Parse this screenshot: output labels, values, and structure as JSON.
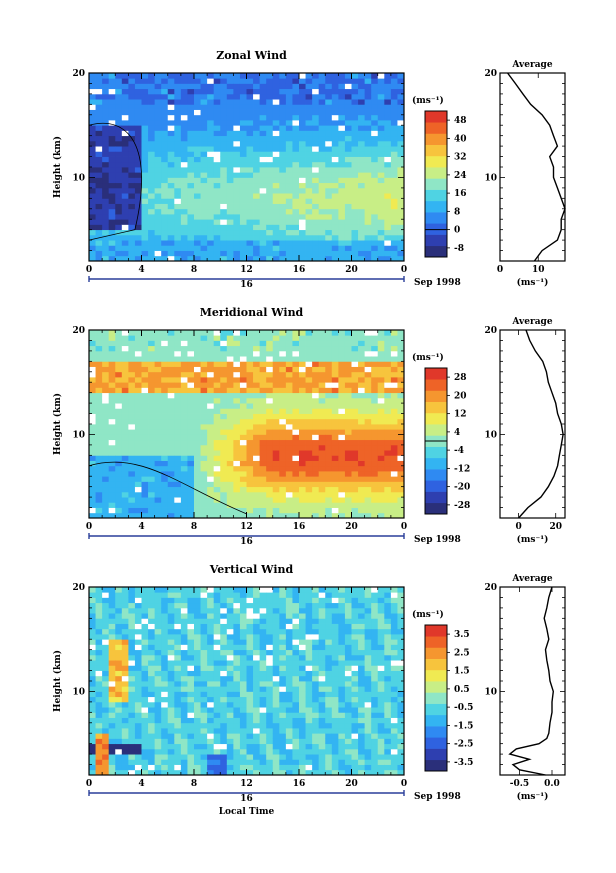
{
  "colors": {
    "colormap": [
      "#2a2f7a",
      "#2e3fb0",
      "#2f62e0",
      "#2f8af2",
      "#33b4f2",
      "#4fd3e3",
      "#8fe6c6",
      "#c8ee86",
      "#f0ea52",
      "#f7c43d",
      "#f5962f",
      "#ee6327",
      "#e0382a"
    ],
    "axis": "#000000",
    "time_bar": "#2a3f9a"
  },
  "common": {
    "ylabel": "Height (km)",
    "xlabel": "Local Time",
    "unit_label": "(ms⁻¹)",
    "avg_title": "Average",
    "date_label": "Sep 1998",
    "day_label": "16",
    "x_ticks": [
      "0",
      "4",
      "8",
      "12",
      "16",
      "20",
      "0"
    ],
    "y_ticks": [
      "10",
      "20"
    ]
  },
  "chart_data": [
    {
      "type": "heatmap",
      "title": "Zonal Wind",
      "ylabel": "Height (km)",
      "xlabel": "",
      "xlim": [
        0,
        24
      ],
      "ylim": [
        2,
        20
      ],
      "colorbar_ticks": [
        -8,
        0,
        8,
        16,
        24,
        32,
        40,
        48
      ],
      "colorbar_labels": [
        "-8",
        "0",
        "8",
        "16",
        "24",
        "32",
        "40",
        "48"
      ],
      "zero_contour": true,
      "average_profile": {
        "title": "Average",
        "xlim": [
          0,
          17
        ],
        "x_ticks": [
          0,
          10
        ],
        "x_tick_labels": [
          "0",
          "10"
        ],
        "xlabel": "(ms⁻¹)",
        "height": [
          2,
          3,
          4,
          5,
          6,
          7,
          8,
          9,
          10,
          11,
          12,
          13,
          14,
          15,
          16,
          17,
          18,
          19,
          20
        ],
        "value": [
          9,
          11,
          15,
          16,
          16,
          17,
          16,
          15,
          14,
          14,
          13,
          15,
          14,
          13,
          11,
          8,
          6,
          4,
          2
        ]
      }
    },
    {
      "type": "heatmap",
      "title": "Meridional Wind",
      "ylabel": "Height (km)",
      "xlabel": "",
      "xlim": [
        0,
        24
      ],
      "ylim": [
        2,
        20
      ],
      "colorbar_ticks": [
        -28,
        -20,
        -12,
        -4,
        4,
        12,
        20,
        28
      ],
      "colorbar_labels": [
        "-28",
        "-20",
        "-12",
        "-4",
        "4",
        "12",
        "20",
        "28"
      ],
      "zero_contour": true,
      "average_profile": {
        "title": "Average",
        "xlim": [
          -10,
          25
        ],
        "x_ticks": [
          0,
          20
        ],
        "x_tick_labels": [
          "0",
          "20"
        ],
        "xlabel": "(ms⁻¹)",
        "height": [
          2,
          3,
          4,
          5,
          6,
          7,
          8,
          9,
          10,
          11,
          12,
          13,
          14,
          15,
          16,
          17,
          18,
          19,
          20
        ],
        "value": [
          0,
          5,
          12,
          16,
          19,
          21,
          22,
          23,
          24,
          23,
          21,
          20,
          18,
          16,
          15,
          13,
          9,
          6,
          4
        ]
      }
    },
    {
      "type": "heatmap",
      "title": "Vertical Wind",
      "ylabel": "Height (km)",
      "xlabel": "Local Time",
      "xlim": [
        0,
        24
      ],
      "ylim": [
        2,
        20
      ],
      "colorbar_ticks": [
        -3.5,
        -2.5,
        -1.5,
        -0.5,
        0.5,
        1.5,
        2.5,
        3.5
      ],
      "colorbar_labels": [
        "-3.5",
        "-2.5",
        "-1.5",
        "-0.5",
        "0.5",
        "1.5",
        "2.5",
        "3.5"
      ],
      "zero_contour": false,
      "average_profile": {
        "title": "Average",
        "xlim": [
          -0.8,
          0.2
        ],
        "x_ticks": [
          -0.5,
          0.0
        ],
        "x_tick_labels": [
          "-0.5",
          "0.0"
        ],
        "xlabel": "(ms⁻¹)",
        "height": [
          2,
          2.5,
          3,
          3.5,
          4,
          4.5,
          5,
          5.5,
          6,
          7,
          8,
          9,
          10,
          11,
          12,
          13,
          14,
          15,
          16,
          17,
          18,
          19,
          20
        ],
        "value": [
          -0.1,
          -0.5,
          -0.6,
          -0.35,
          -0.65,
          -0.55,
          -0.2,
          -0.08,
          -0.05,
          -0.03,
          0.0,
          0.0,
          0.02,
          -0.03,
          -0.05,
          -0.08,
          -0.1,
          -0.05,
          -0.08,
          -0.12,
          -0.08,
          -0.05,
          0.0
        ]
      }
    }
  ]
}
